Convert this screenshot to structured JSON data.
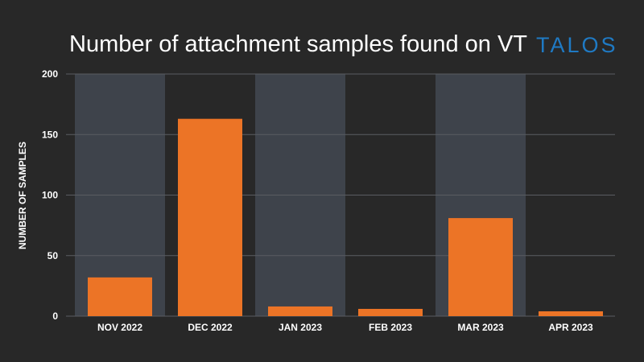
{
  "logo_text": "TALOS",
  "colors": {
    "background": "#282828",
    "band": "#3e434b",
    "bar": "#ec7426",
    "grid": "#5a5d62",
    "text": "#ffffff",
    "logo": "#1f7ac4"
  },
  "chart_data": {
    "type": "bar",
    "title": "Number of attachment samples found on VT",
    "xlabel": "",
    "ylabel": "NUMBER OF SAMPLES",
    "categories": [
      "NOV 2022",
      "DEC 2022",
      "JAN 2023",
      "FEB 2023",
      "MAR 2023",
      "APR 2023"
    ],
    "values": [
      32,
      163,
      8,
      6,
      81,
      4
    ],
    "ylim": [
      0,
      200
    ],
    "yticks": [
      0,
      50,
      100,
      150,
      200
    ],
    "grid": true,
    "legend": "none",
    "alternating_band_background": true
  }
}
